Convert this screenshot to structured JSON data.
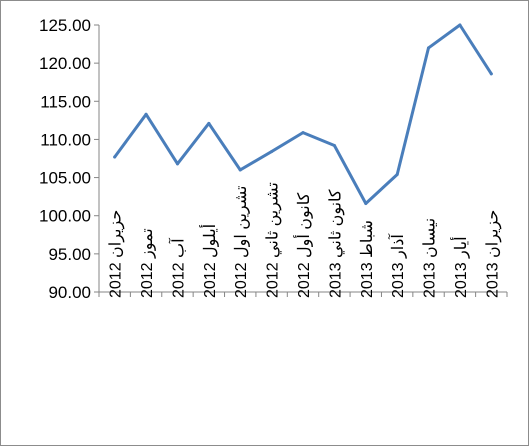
{
  "chart_data": {
    "type": "line",
    "title": "",
    "xlabel": "",
    "ylabel": "",
    "categories": [
      "حزيران 2012",
      "تموز 2012",
      "آب 2012",
      "أيلول 2012",
      "تشرين اول 2012",
      "تشرين ثاني 2012",
      "كانون أول 2012",
      "كانون ثاني 2013",
      "شباط 2013",
      "آذار 2013",
      "نيسان 2013",
      "أيار 2013",
      "حزيران 2013"
    ],
    "series": [
      {
        "values": [
          107.7,
          113.3,
          106.8,
          112.1,
          106.0,
          108.4,
          110.9,
          109.2,
          101.6,
          105.4,
          122.0,
          125.0,
          118.6
        ],
        "color": "#4a7ebb"
      }
    ],
    "ylim": [
      90,
      125
    ],
    "yticks": [
      "90.00",
      "95.00",
      "100.00",
      "105.00",
      "110.00",
      "115.00",
      "120.00",
      "125.00"
    ],
    "grid": false,
    "legend": "none"
  }
}
